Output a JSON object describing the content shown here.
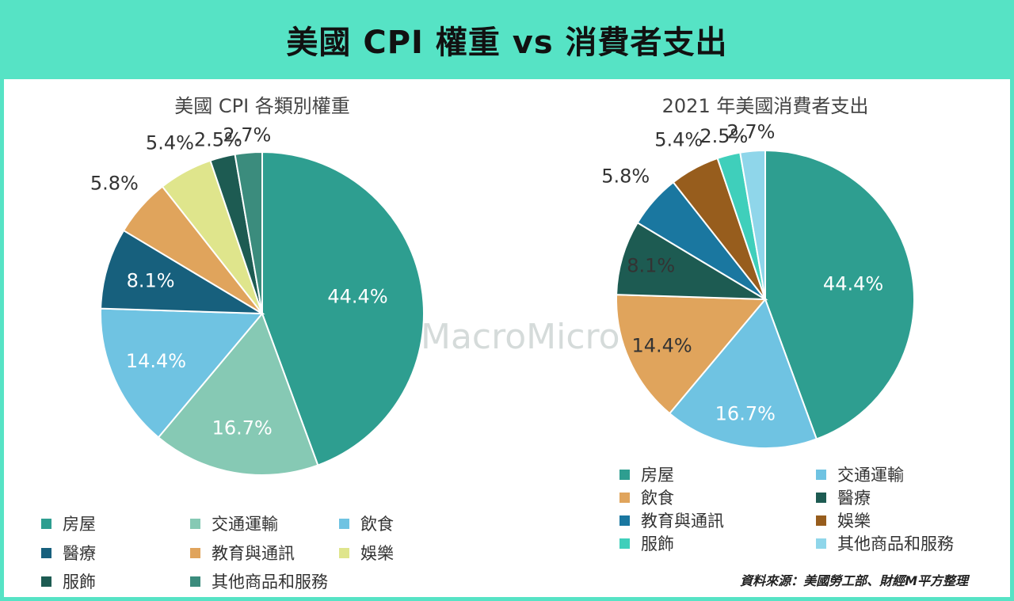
{
  "title": "美國 CPI 權重 vs 消費者支出",
  "source": "資料來源：美國勞工部、財經M平方整理",
  "watermark": "MacroMicro",
  "chart_data": [
    {
      "type": "pie",
      "title": "美國 CPI 各類別權重",
      "slices": [
        {
          "label": "房屋",
          "value": 44.4,
          "text": "44.4%",
          "color": "#2e9e90"
        },
        {
          "label": "交通運輸",
          "value": 16.7,
          "text": "16.7%",
          "color": "#86c9b4"
        },
        {
          "label": "飲食",
          "value": 14.4,
          "text": "14.4%",
          "color": "#6fc3e2"
        },
        {
          "label": "醫療",
          "value": 8.1,
          "text": "8.1%",
          "color": "#17607d"
        },
        {
          "label": "教育與通訊",
          "value": 5.8,
          "text": "5.8%",
          "color": "#e0a45c"
        },
        {
          "label": "娛樂",
          "value": 5.4,
          "text": "5.4%",
          "color": "#dfe58c"
        },
        {
          "label": "服飾",
          "value": 2.5,
          "text": "2.5%",
          "color": "#1d5b52"
        },
        {
          "label": "其他商品和服務",
          "value": 2.7,
          "text": "2.7%",
          "color": "#3b8c7d"
        }
      ]
    },
    {
      "type": "pie",
      "title": "2021 年美國消費者支出",
      "slices": [
        {
          "label": "房屋",
          "value": 44.4,
          "text": "44.4%",
          "color": "#2e9e90"
        },
        {
          "label": "交通運輸",
          "value": 16.7,
          "text": "16.7%",
          "color": "#6fc3e2"
        },
        {
          "label": "飲食",
          "value": 14.4,
          "text": "14.4%",
          "color": "#e0a45c"
        },
        {
          "label": "醫療",
          "value": 8.1,
          "text": "8.1%",
          "color": "#1d5b52"
        },
        {
          "label": "教育與通訊",
          "value": 5.8,
          "text": "5.8%",
          "color": "#1a77a0"
        },
        {
          "label": "娛樂",
          "value": 5.4,
          "text": "5.4%",
          "color": "#975d1d"
        },
        {
          "label": "服飾",
          "value": 2.5,
          "text": "2.5%",
          "color": "#3fcfbb"
        },
        {
          "label": "其他商品和服務",
          "value": 2.7,
          "text": "2.7%",
          "color": "#8fd6ea"
        }
      ]
    }
  ]
}
